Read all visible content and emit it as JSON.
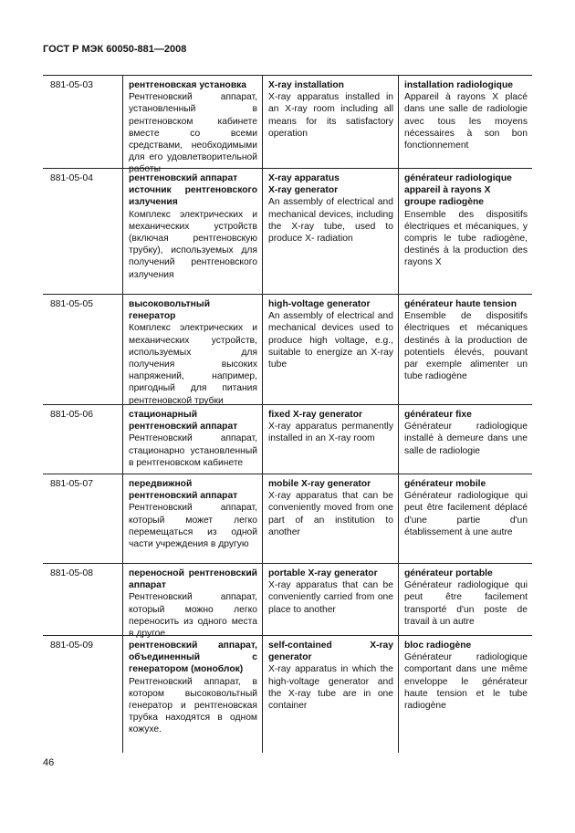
{
  "header": {
    "title": "ГОСТ Р МЭК 60050-881—2008"
  },
  "table": {
    "rows": [
      {
        "code": "881-05-03",
        "ru": {
          "terms": [
            "рентгеновская установка"
          ],
          "definition": "Рентгеновский аппарат, установленный в рентгеновском кабинете вместе со всеми средствами, необходимыми для его удовлетворительной работы"
        },
        "en": {
          "terms": [
            "X-ray installation"
          ],
          "definition": "X-ray apparatus installed in an X-ray room including all means for its satisfactory operation"
        },
        "fr": {
          "terms": [
            "installation radiologique"
          ],
          "definition": "Appareil à rayons X placé dans une salle de radiologie avec tous les moyens nécessaires à son bon fonctionnement"
        }
      },
      {
        "code": "881-05-04",
        "ru": {
          "terms": [
            "рентгеновский аппарат",
            "источник рентгеновского излучения"
          ],
          "definition": "Комплекс электрических и механических устройств (включая рентгеновскую трубку), используемых для получений рентгеновского излучения"
        },
        "en": {
          "terms": [
            "X-ray apparatus",
            "X-ray generator"
          ],
          "definition": "An assembly of electrical and mechanical devices, including the X-ray tube, used to produce X- radiation"
        },
        "fr": {
          "terms": [
            "générateur radiologique",
            "appareil à rayons X",
            "groupe radiogène"
          ],
          "definition": "Ensemble des dispositifs électriques et mécaniques, y compris le tube radiogène, destinés à la production des rayons X"
        }
      },
      {
        "code": "881-05-05",
        "ru": {
          "terms": [
            "высоковольтный генератор"
          ],
          "definition": "Комплекс электрических и механических устройств, используемых для получения высоких напряжений, например, пригодный для питания рентгеновской трубки"
        },
        "en": {
          "terms": [
            "high-voltage generator"
          ],
          "definition": "An assembly of electrical and mechanical devices used to produce high voltage, e.g., suitable to energize an X-ray tube"
        },
        "fr": {
          "terms": [
            "générateur haute tension"
          ],
          "definition": "Ensemble de dispositifs électriques et mécaniques destinés à la production de potentiels élevés, pouvant par exemple alimenter un tube radiogène"
        }
      },
      {
        "code": "881-05-06",
        "ru": {
          "terms": [
            "стационарный рентгеновский аппарат"
          ],
          "definition": "Рентгеновский аппарат, стационарно установленный в рентгеновском кабинете"
        },
        "en": {
          "terms": [
            "fixed X-ray generator"
          ],
          "definition": "X-ray apparatus permanently installed in an X-ray room"
        },
        "fr": {
          "terms": [
            "générateur fixe"
          ],
          "definition": "Générateur radiologique installé à demeure dans une salle de radiologie"
        }
      },
      {
        "code": "881-05-07",
        "ru": {
          "terms": [
            "передвижной рентгеновский аппарат"
          ],
          "definition": "Рентгеновский аппарат, который может легко перемещаться из одной части учреждения в другую"
        },
        "en": {
          "terms": [
            "mobile X-ray generator"
          ],
          "definition": "X-ray apparatus that can be conveniently moved from one part of an institution to another"
        },
        "fr": {
          "terms": [
            "générateur mobile"
          ],
          "definition": "Générateur radiologique qui peut être facilement déplacé d'une partie d'un établissement à une autre"
        }
      },
      {
        "code": "881-05-08",
        "ru": {
          "terms": [
            "переносной рентгеновский аппарат"
          ],
          "definition": "Рентгеновский аппарат, который можно легко переносить из одного места в другое"
        },
        "en": {
          "terms": [
            "portable X-ray generator"
          ],
          "definition": "X-ray apparatus that can be conveniently carried from one place to another"
        },
        "fr": {
          "terms": [
            "générateur portable"
          ],
          "definition": "Générateur radiologique qui peut être facilement transporté d'un poste de travail à un autre"
        }
      },
      {
        "code": "881-05-09",
        "ru": {
          "terms": [
            "рентгеновский аппарат, объединенный с генератором (моноблок)"
          ],
          "definition": "Рентгеновский аппарат, в котором высоковольтный генератор и рентгеновская трубка находятся в одном кожухе."
        },
        "en": {
          "terms": [
            "self-contained X-ray generator"
          ],
          "definition": "X-ray apparatus in which the high-voltage generator and the X-ray tube are in one container"
        },
        "fr": {
          "terms": [
            "bloc radiogène"
          ],
          "definition": "Générateur radiologique comportant dans une même enveloppe le générateur haute tension et le tube radiogène"
        }
      }
    ]
  },
  "footer": {
    "page_number": "46"
  }
}
